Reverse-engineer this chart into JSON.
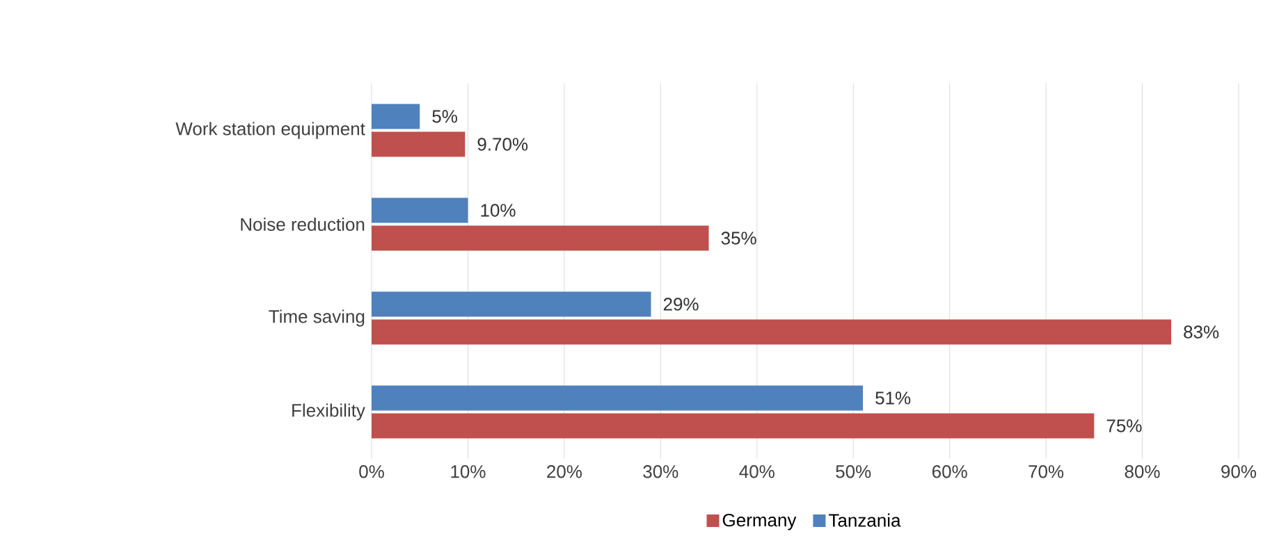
{
  "chart_data": {
    "type": "bar",
    "orientation": "horizontal",
    "categories": [
      "Work station equipment",
      "Noise reduction",
      "Time saving",
      "Flexibility"
    ],
    "series": [
      {
        "name": "Germany",
        "color": "#c0504d",
        "values": [
          9.7,
          35,
          83,
          75
        ],
        "value_labels": [
          "9.70%",
          "35%",
          "83%",
          "75%"
        ]
      },
      {
        "name": "Tanzania",
        "color": "#4f81bd",
        "values": [
          5,
          10,
          29,
          51
        ],
        "value_labels": [
          "5%",
          "10%",
          "29%",
          "51%"
        ]
      }
    ],
    "xlim": [
      0,
      90
    ],
    "xticks": [
      {
        "value": 0,
        "label": "0%"
      },
      {
        "value": 10,
        "label": "10%"
      },
      {
        "value": 20,
        "label": "20%"
      },
      {
        "value": 30,
        "label": "30%"
      },
      {
        "value": 40,
        "label": "40%"
      },
      {
        "value": 50,
        "label": "50%"
      },
      {
        "value": 60,
        "label": "60%"
      },
      {
        "value": 70,
        "label": "70%"
      },
      {
        "value": 80,
        "label": "80%"
      },
      {
        "value": 90,
        "label": "90%"
      }
    ],
    "grid": "x",
    "legend": "bottom"
  }
}
